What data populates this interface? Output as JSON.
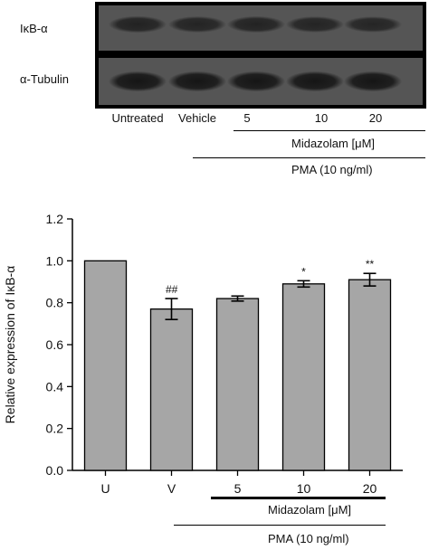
{
  "blot": {
    "proteins": [
      {
        "label": "IκB-α",
        "intensities": [
          0.62,
          0.58,
          0.6,
          0.57,
          0.55
        ]
      },
      {
        "label": "α-Tubulin",
        "intensities": [
          0.9,
          0.9,
          0.9,
          0.9,
          0.9
        ]
      }
    ],
    "lanes": [
      "Untreated",
      "Vehicle",
      "5",
      "10",
      "20"
    ],
    "treatment_label": "Midazolam [μM]",
    "stimulus_label": "PMA (10 ng/ml)",
    "colors": {
      "band": "#111111",
      "membrane": "#555555",
      "frame": "#000000"
    }
  },
  "chart_data": {
    "type": "bar",
    "categories": [
      "U",
      "V",
      "5",
      "10",
      "20"
    ],
    "values": [
      1.0,
      0.77,
      0.82,
      0.89,
      0.91
    ],
    "errors": [
      0.0,
      0.05,
      0.012,
      0.015,
      0.03
    ],
    "annotations": [
      "",
      "##",
      "",
      "*",
      "**"
    ],
    "ylabel": "Relative expression of IκB-α",
    "ylim": [
      0.0,
      1.2
    ],
    "yticks": [
      "0.0",
      "0.2",
      "0.4",
      "0.6",
      "0.8",
      "1.0",
      "1.2"
    ],
    "treatment_label": "Midazolam [μM]",
    "stimulus_label": "PMA (10 ng/ml)",
    "bar_color": "#a6a6a6",
    "grid": false
  }
}
